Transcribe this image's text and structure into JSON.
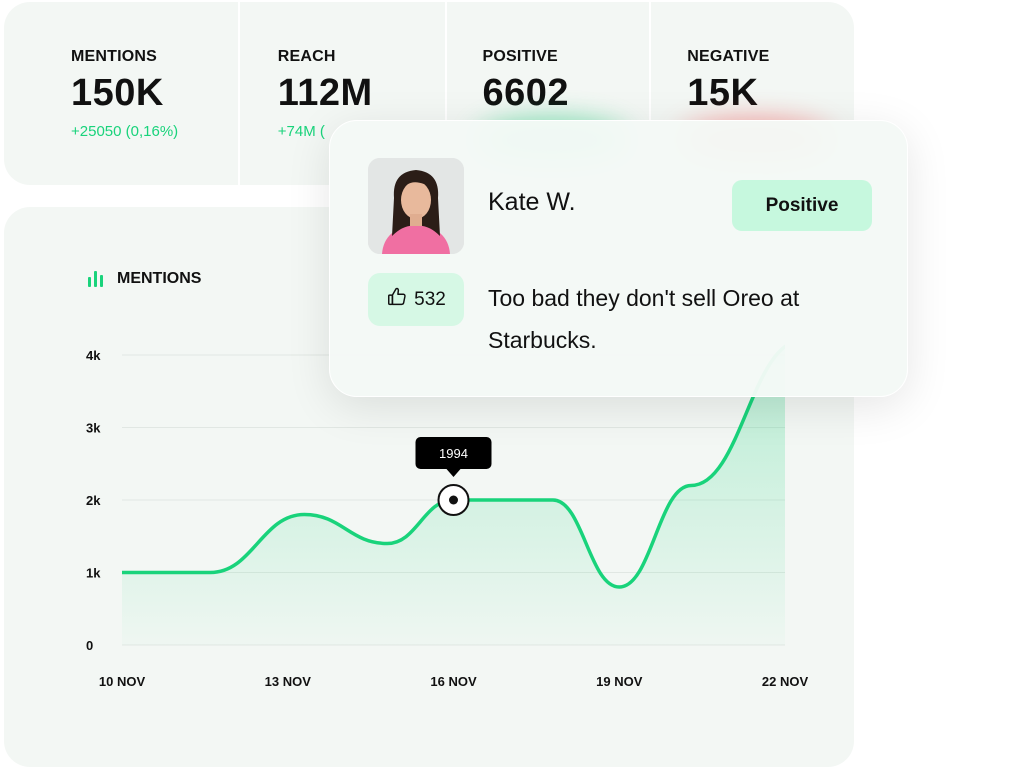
{
  "stats": [
    {
      "label": "MENTIONS",
      "value": "150K",
      "change": "+25050 (0,16%)",
      "glow_color": ""
    },
    {
      "label": "REACH",
      "value": "112M",
      "change": "+74M (",
      "glow_color": ""
    },
    {
      "label": "POSITIVE",
      "value": "6602",
      "change": "",
      "glow_color": "#19d37b"
    },
    {
      "label": "NEGATIVE",
      "value": "15K",
      "change": "",
      "glow_color": "#ff5a5a"
    }
  ],
  "review": {
    "name": "Kate W.",
    "sentiment": "Positive",
    "likes": "532",
    "text": "Too bad they don't sell Oreo at Starbucks.",
    "like_icon": "thumbs-up-icon"
  },
  "colors": {
    "accent": "#19d37b",
    "badge": "#c6f8de",
    "panel": "#f3f7f4"
  },
  "chart_data": {
    "type": "area",
    "title": "MENTIONS",
    "title_icon": "bar-chart-icon",
    "xlabel": "",
    "ylabel": "",
    "ylim": [
      0,
      4000
    ],
    "x_range": [
      10,
      22.3
    ],
    "yticks": [
      {
        "v": 0,
        "label": "0"
      },
      {
        "v": 1000,
        "label": "1k"
      },
      {
        "v": 2000,
        "label": "2k"
      },
      {
        "v": 3000,
        "label": "3k"
      },
      {
        "v": 4000,
        "label": "4k"
      }
    ],
    "xticks": [
      {
        "v": 10,
        "label": "10 NOV"
      },
      {
        "v": 13,
        "label": "13 NOV"
      },
      {
        "v": 16,
        "label": "16 NOV"
      },
      {
        "v": 19,
        "label": "19 NOV"
      },
      {
        "v": 22,
        "label": "22 NOV"
      }
    ],
    "grid": true,
    "series": [
      {
        "points": [
          [
            10,
            1000
          ],
          [
            11.6,
            1000
          ],
          [
            13.3,
            1800
          ],
          [
            14.8,
            1400
          ],
          [
            16.0,
            2000
          ],
          [
            17.8,
            2000
          ],
          [
            19.0,
            800
          ],
          [
            20.3,
            2200
          ],
          [
            22.3,
            4200
          ]
        ]
      }
    ],
    "highlight": {
      "x": 16.0,
      "y": 2000,
      "label": "1994"
    }
  }
}
